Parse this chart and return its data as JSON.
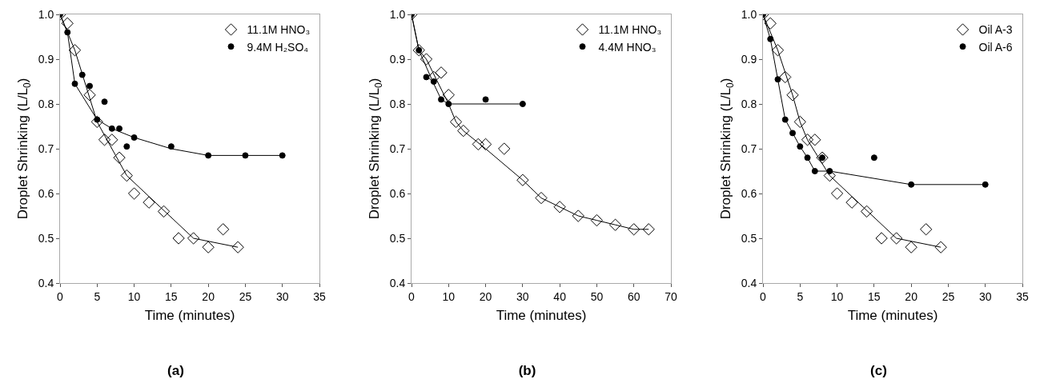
{
  "chart_data": [
    {
      "type": "scatter",
      "title": "(a)",
      "xlabel": "Time (minutes)",
      "ylabel": "Droplet Shrinking (L/L$_{0}$)",
      "xlim": [
        0,
        35
      ],
      "xticks": [
        0,
        5,
        10,
        15,
        20,
        25,
        30,
        35
      ],
      "ylim": [
        0.4,
        1.0
      ],
      "yticks": [
        {
          "value": 0.4,
          "label": "0.4"
        },
        {
          "value": 0.5,
          "label": "0.5"
        },
        {
          "value": 0.6,
          "label": "0.6"
        },
        {
          "value": 0.7,
          "label": "0.7"
        },
        {
          "value": 0.8,
          "label": "0.8"
        },
        {
          "value": 0.9,
          "label": "0.9"
        },
        {
          "value": 1.0,
          "label": "1.0"
        }
      ],
      "grid": false,
      "legend": "top right",
      "series": [
        {
          "type": "line",
          "color": "#000000",
          "marker": "none",
          "x": [
            0,
            2,
            5,
            9,
            18,
            24
          ],
          "values": [
            1.0,
            0.92,
            0.76,
            0.64,
            0.5,
            0.48
          ]
        },
        {
          "type": "line",
          "color": "#000000",
          "marker": "none",
          "x": [
            0,
            1,
            2,
            5,
            7,
            10,
            15,
            20,
            30
          ],
          "values": [
            1.0,
            0.96,
            0.845,
            0.765,
            0.745,
            0.725,
            0.7,
            0.685,
            0.685
          ]
        },
        {
          "name": "11.1M HNO₃",
          "color": "#000000",
          "marker": "diamond",
          "x": [
            0,
            1,
            2,
            4,
            5,
            6,
            7,
            8,
            9,
            10,
            12,
            14,
            16,
            18,
            20,
            22,
            24
          ],
          "values": [
            1.0,
            0.98,
            0.92,
            0.82,
            0.76,
            0.72,
            0.72,
            0.68,
            0.64,
            0.6,
            0.58,
            0.56,
            0.5,
            0.5,
            0.48,
            0.52,
            0.48
          ]
        },
        {
          "name": "9.4M H₂SO₄",
          "color": "#000000",
          "marker": "circle",
          "x": [
            0,
            1,
            2,
            3,
            4,
            5,
            6,
            7,
            8,
            9,
            10,
            15,
            20,
            25,
            30
          ],
          "values": [
            1.0,
            0.96,
            0.845,
            0.865,
            0.84,
            0.765,
            0.805,
            0.745,
            0.745,
            0.705,
            0.725,
            0.705,
            0.685,
            0.685,
            0.685
          ]
        }
      ]
    },
    {
      "type": "scatter",
      "title": "(b)",
      "xlabel": "Time (minutes)",
      "ylabel": "Droplet Shrinking (L/L$_{0}$)",
      "xlim": [
        0,
        70
      ],
      "xticks": [
        0,
        10,
        20,
        30,
        40,
        50,
        60,
        70
      ],
      "ylim": [
        0.4,
        1.0
      ],
      "yticks": [
        {
          "value": 0.4,
          "label": "0.4"
        },
        {
          "value": 0.5,
          "label": "0.5"
        },
        {
          "value": 0.6,
          "label": "0.6"
        },
        {
          "value": 0.7,
          "label": "0.7"
        },
        {
          "value": 0.8,
          "label": "0.8"
        },
        {
          "value": 0.9,
          "label": "0.9"
        },
        {
          "value": 1.0,
          "label": "1.0"
        }
      ],
      "grid": false,
      "legend": "top right",
      "series": [
        {
          "type": "line",
          "color": "#000000",
          "marker": "none",
          "x": [
            0,
            2,
            4,
            10,
            12,
            14,
            20,
            30,
            35,
            40,
            45,
            50,
            55,
            60,
            64
          ],
          "values": [
            1.0,
            0.92,
            0.9,
            0.8,
            0.76,
            0.74,
            0.7,
            0.63,
            0.59,
            0.57,
            0.55,
            0.54,
            0.53,
            0.52,
            0.52
          ]
        },
        {
          "type": "line",
          "color": "#000000",
          "marker": "none",
          "x": [
            0,
            2,
            6,
            8,
            10,
            30
          ],
          "values": [
            1.0,
            0.92,
            0.845,
            0.81,
            0.8,
            0.8
          ]
        },
        {
          "name": "11.1M HNO₃",
          "color": "#000000",
          "marker": "diamond",
          "x": [
            0,
            2,
            4,
            6,
            8,
            10,
            12,
            14,
            18,
            20,
            25,
            30,
            35,
            40,
            45,
            50,
            55,
            60,
            64
          ],
          "values": [
            1.0,
            0.92,
            0.9,
            0.86,
            0.87,
            0.82,
            0.76,
            0.74,
            0.71,
            0.71,
            0.7,
            0.63,
            0.59,
            0.57,
            0.55,
            0.54,
            0.53,
            0.52,
            0.52
          ]
        },
        {
          "name": "4.4M HNO₃",
          "color": "#000000",
          "marker": "circle",
          "x": [
            0,
            2,
            4,
            6,
            8,
            10,
            20,
            30
          ],
          "values": [
            1.0,
            0.92,
            0.86,
            0.85,
            0.81,
            0.8,
            0.81,
            0.8
          ]
        }
      ]
    },
    {
      "type": "scatter",
      "title": "(c)",
      "xlabel": "Time (minutes)",
      "ylabel": "Droplet Shrinking (L/L$_{0}$)",
      "xlim": [
        0,
        35
      ],
      "xticks": [
        0,
        5,
        10,
        15,
        20,
        25,
        30,
        35
      ],
      "ylim": [
        0.4,
        1.0
      ],
      "yticks": [
        {
          "value": 0.4,
          "label": "0.4"
        },
        {
          "value": 0.5,
          "label": "0.5"
        },
        {
          "value": 0.6,
          "label": "0.6"
        },
        {
          "value": 0.7,
          "label": "0.7"
        },
        {
          "value": 0.8,
          "label": "0.8"
        },
        {
          "value": 0.9,
          "label": "0.9"
        },
        {
          "value": 1.0,
          "label": "1.0"
        }
      ],
      "grid": false,
      "legend": "top right",
      "series": [
        {
          "type": "line",
          "color": "#000000",
          "marker": "none",
          "x": [
            0,
            2,
            4,
            5,
            6,
            9,
            18,
            24
          ],
          "values": [
            1.0,
            0.92,
            0.82,
            0.76,
            0.72,
            0.64,
            0.5,
            0.48
          ]
        },
        {
          "type": "line",
          "color": "#000000",
          "marker": "none",
          "x": [
            0,
            1,
            2,
            3,
            4,
            5,
            6,
            7,
            9,
            20,
            30
          ],
          "values": [
            1.0,
            0.945,
            0.855,
            0.765,
            0.735,
            0.705,
            0.68,
            0.65,
            0.65,
            0.62,
            0.62
          ]
        },
        {
          "name": "Oil A-3",
          "color": "#000000",
          "marker": "diamond",
          "x": [
            0,
            1,
            2,
            3,
            4,
            5,
            6,
            7,
            8,
            9,
            10,
            12,
            14,
            16,
            18,
            20,
            22,
            24
          ],
          "values": [
            1.0,
            0.98,
            0.92,
            0.86,
            0.82,
            0.76,
            0.72,
            0.72,
            0.68,
            0.64,
            0.6,
            0.58,
            0.56,
            0.5,
            0.5,
            0.48,
            0.52,
            0.48
          ]
        },
        {
          "name": "Oil A-6",
          "color": "#000000",
          "marker": "circle",
          "x": [
            0,
            1,
            2,
            3,
            4,
            5,
            6,
            7,
            8,
            9,
            15,
            20,
            30
          ],
          "values": [
            1.0,
            0.945,
            0.855,
            0.765,
            0.735,
            0.705,
            0.68,
            0.65,
            0.68,
            0.65,
            0.68,
            0.62,
            0.62
          ]
        }
      ]
    }
  ]
}
